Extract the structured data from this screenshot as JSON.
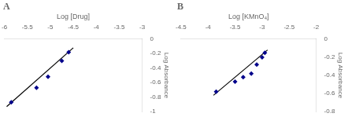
{
  "chart_data": [
    {
      "type": "scatter",
      "title": "A",
      "xlabel": "Log [Drug]",
      "ylabel": "Log Absorbance",
      "xlim": [
        -6,
        -3
      ],
      "ylim": [
        -1,
        0
      ],
      "xticks": [
        -6,
        -5.5,
        -5,
        -4.5,
        -4,
        -3.5,
        -3
      ],
      "yticks": [
        0,
        -0.2,
        -0.4,
        -0.6,
        -0.8,
        -1
      ],
      "grid": false,
      "series": [
        {
          "type": "scatter",
          "marker": "diamond",
          "color": "#00008B",
          "x": [
            -5.85,
            -5.3,
            -5.05,
            -4.75,
            -4.6
          ],
          "values": [
            -0.87,
            -0.67,
            -0.52,
            -0.3,
            -0.18
          ]
        },
        {
          "type": "line",
          "color": "#000000",
          "x": [
            -5.95,
            -4.5
          ],
          "values": [
            -0.93,
            -0.12
          ]
        }
      ]
    },
    {
      "type": "scatter",
      "title": "B",
      "xlabel": "Log [KMnO₄]",
      "ylabel": "Log Absorbance",
      "xlim": [
        -4.5,
        -2
      ],
      "ylim": [
        -0.8,
        0
      ],
      "xticks": [
        -4.5,
        -4,
        -3.5,
        -3,
        -2.5,
        -2
      ],
      "yticks": [
        0,
        -0.2,
        -0.4,
        -0.6,
        -0.8
      ],
      "grid": false,
      "series": [
        {
          "type": "scatter",
          "marker": "diamond",
          "color": "#00008B",
          "x": [
            -3.85,
            -3.5,
            -3.35,
            -3.2,
            -3.1,
            -3.0,
            -2.95
          ],
          "values": [
            -0.58,
            -0.47,
            -0.42,
            -0.38,
            -0.28,
            -0.2,
            -0.15
          ]
        },
        {
          "type": "line",
          "color": "#000000",
          "x": [
            -3.9,
            -2.9
          ],
          "values": [
            -0.62,
            -0.12
          ]
        }
      ]
    }
  ]
}
